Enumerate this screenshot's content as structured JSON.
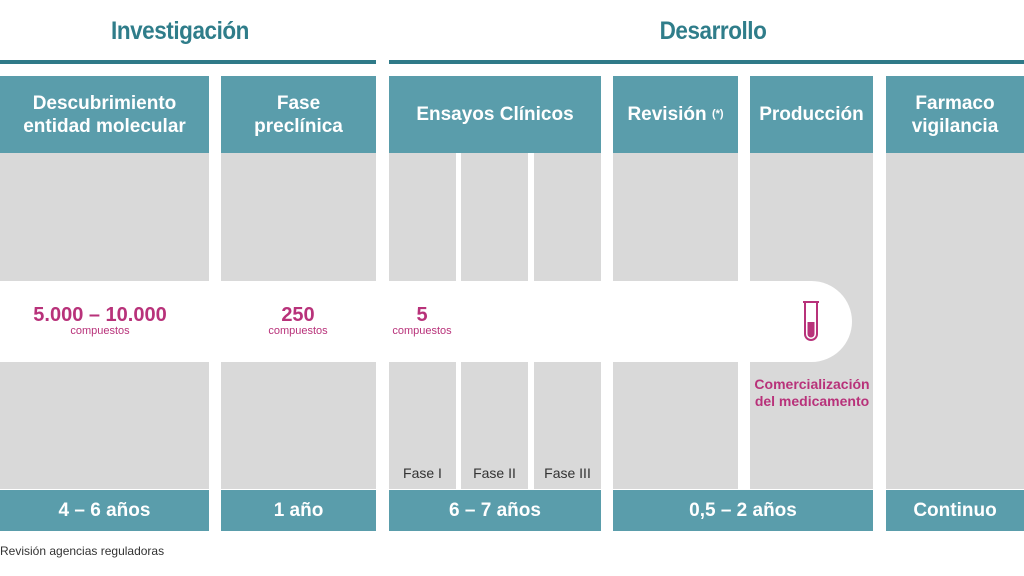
{
  "sections": {
    "research": "Investigación",
    "development": "Desarrollo"
  },
  "columns": [
    {
      "header": "Descubrimiento entidad molecular",
      "footer": "4 – 6 años"
    },
    {
      "header": "Fase preclínica",
      "footer": "1 año"
    },
    {
      "header": "Ensayos Clínicos",
      "footer": "6 – 7 años",
      "phases": [
        "Fase I",
        "Fase II",
        "Fase III"
      ]
    },
    {
      "header": "Revisión",
      "header_note": "(*)",
      "footer": "0,5 – 2 años"
    },
    {
      "header": "Producción"
    },
    {
      "header": "Farmaco vigilancia",
      "footer": "Continuo"
    }
  ],
  "compounds": [
    {
      "value": "5.000 – 10.000",
      "unit": "compuestos"
    },
    {
      "value": "250",
      "unit": "compuestos"
    },
    {
      "value": "5",
      "unit": "compuestos"
    }
  ],
  "marketing": {
    "line1": "Comercialización",
    "line2": "del medicamento",
    "icon": "test-tube-icon"
  },
  "footnote": "Revisión agencias reguladoras",
  "colors": {
    "teal": "#5a9dab",
    "dark_teal": "#2f7a88",
    "magenta": "#b8327a",
    "gray": "#d9d9d9"
  }
}
